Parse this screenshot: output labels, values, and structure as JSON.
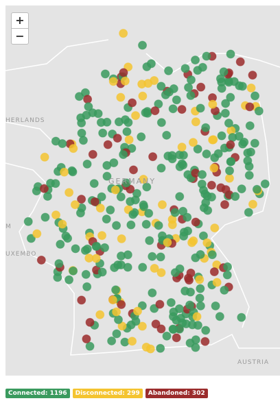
{
  "map": {
    "controls": {
      "zoom_in": "+",
      "zoom_out": "−"
    },
    "labels": {
      "netherlands": "HERLANDS",
      "germany": "GERMANY",
      "luxembourg": "UXEMBO",
      "belgium": "M",
      "austria": "AUSTRIA"
    },
    "legend": [
      {
        "label": "Connected: 1196",
        "color": "#3a9a5e"
      },
      {
        "label": "Disconnected: 299",
        "color": "#f4c430"
      },
      {
        "label": "Abandoned: 302",
        "color": "#9b2c2c"
      }
    ]
  }
}
